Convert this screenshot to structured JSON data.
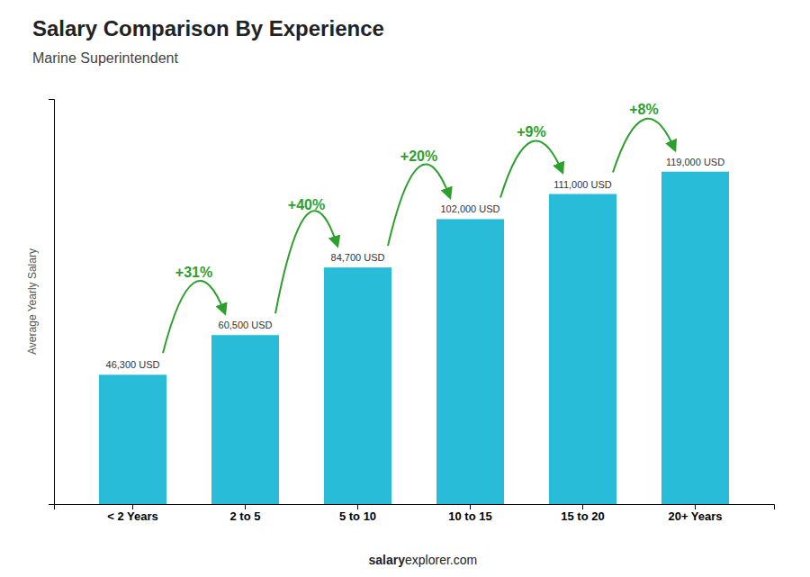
{
  "chart_data": {
    "type": "bar",
    "title": "Salary Comparison By Experience",
    "subtitle": "Marine Superintendent",
    "y_label": "Average Yearly Salary",
    "categories": [
      "< 2 Years",
      "2 to 5",
      "5 to 10",
      "10 to 15",
      "15 to 20",
      "20+ Years"
    ],
    "values": [
      46300,
      60500,
      84700,
      102000,
      111000,
      119000
    ],
    "value_labels": [
      "46,300 USD",
      "60,500 USD",
      "84,700 USD",
      "102,000 USD",
      "111,000 USD",
      "119,000 USD"
    ],
    "data_labels": true,
    "annotations": [
      "+31%",
      "+40%",
      "+20%",
      "+9%",
      "+8%"
    ],
    "footer": [
      "salary",
      "explorer.com"
    ],
    "color": "#29bcd8",
    "ylim": [
      0,
      145000
    ],
    "grid": false,
    "tick_labels": "x"
  }
}
